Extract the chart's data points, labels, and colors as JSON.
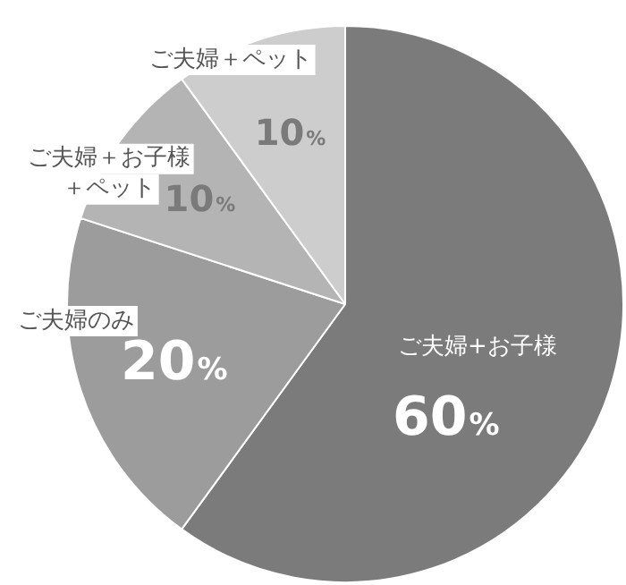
{
  "chart_data": {
    "type": "pie",
    "categories": [
      "ご夫婦+お子様",
      "ご夫婦のみ",
      "ご夫婦＋お子様＋ペット",
      "ご夫婦＋ペット"
    ],
    "values": [
      60,
      20,
      10,
      10
    ],
    "colors": [
      "#7b7b7b",
      "#9c9c9c",
      "#b4b4b4",
      "#cdcdcd"
    ],
    "value_labels": [
      "60%",
      "20%",
      "10%",
      "10%"
    ],
    "legend": false
  }
}
